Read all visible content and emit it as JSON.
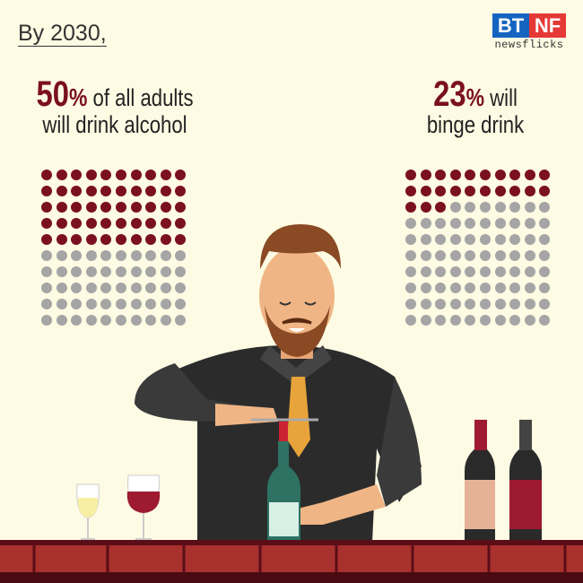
{
  "heading": "By 2030,",
  "logo": {
    "left": "BT",
    "right": "NF",
    "tagline": "newsflicks"
  },
  "stats": [
    {
      "percent": "50",
      "sign": "%",
      "line1": " of all adults",
      "line2": "will drink alcohol",
      "filled": 50,
      "total": 100
    },
    {
      "percent": "23",
      "sign": "%",
      "line1": " will",
      "line2": "binge drink",
      "filled": 23,
      "total": 100
    }
  ],
  "colors": {
    "background": "#fdfbe3",
    "accent": "#7a1020",
    "dot_off": "#a5a5a5"
  }
}
